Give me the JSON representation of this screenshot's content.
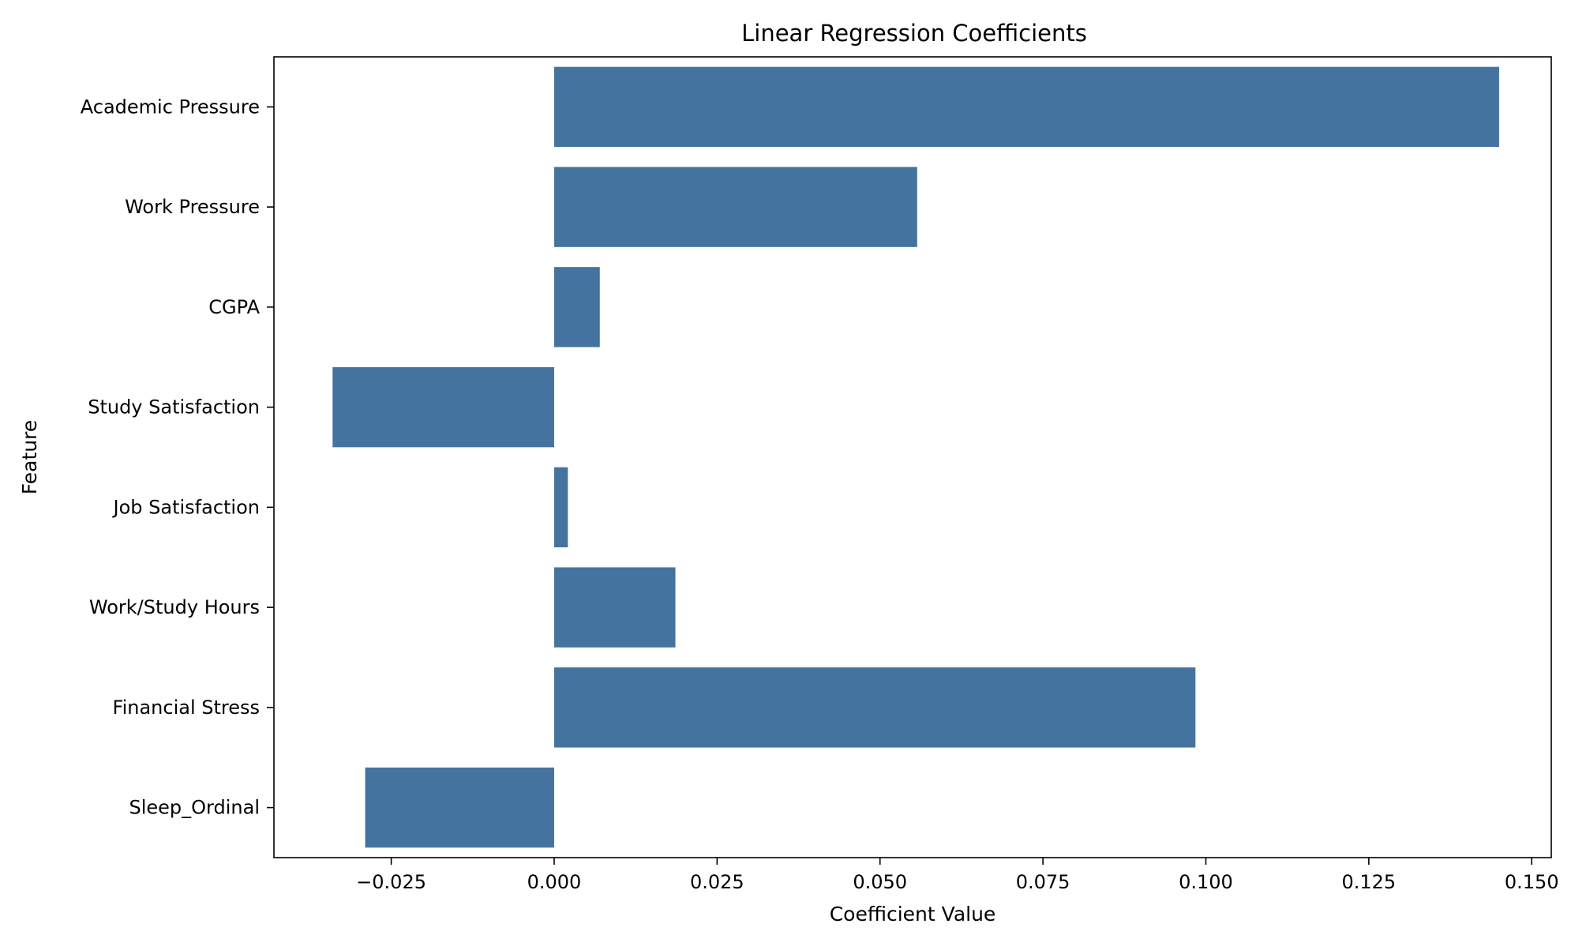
{
  "chart_data": {
    "type": "bar",
    "orientation": "horizontal",
    "title": "Linear Regression Coefficients",
    "xlabel": "Coefficient Value",
    "ylabel": "Feature",
    "categories": [
      "Academic Pressure",
      "Work Pressure",
      "CGPA",
      "Study Satisfaction",
      "Job Satisfaction",
      "Work/Study Hours",
      "Financial Stress",
      "Sleep_Ordinal"
    ],
    "values": [
      0.145,
      0.0557,
      0.007,
      -0.034,
      0.0021,
      0.0186,
      0.0984,
      -0.029
    ],
    "xlim": [
      -0.043,
      0.153
    ],
    "xticks": [
      -0.025,
      0.0,
      0.025,
      0.05,
      0.075,
      0.1,
      0.125,
      0.15
    ],
    "xtick_labels": [
      "−0.025",
      "0.000",
      "0.025",
      "0.050",
      "0.075",
      "0.100",
      "0.125",
      "0.150"
    ],
    "grid": false,
    "legend": "none",
    "bar_color": "#4473a0"
  }
}
